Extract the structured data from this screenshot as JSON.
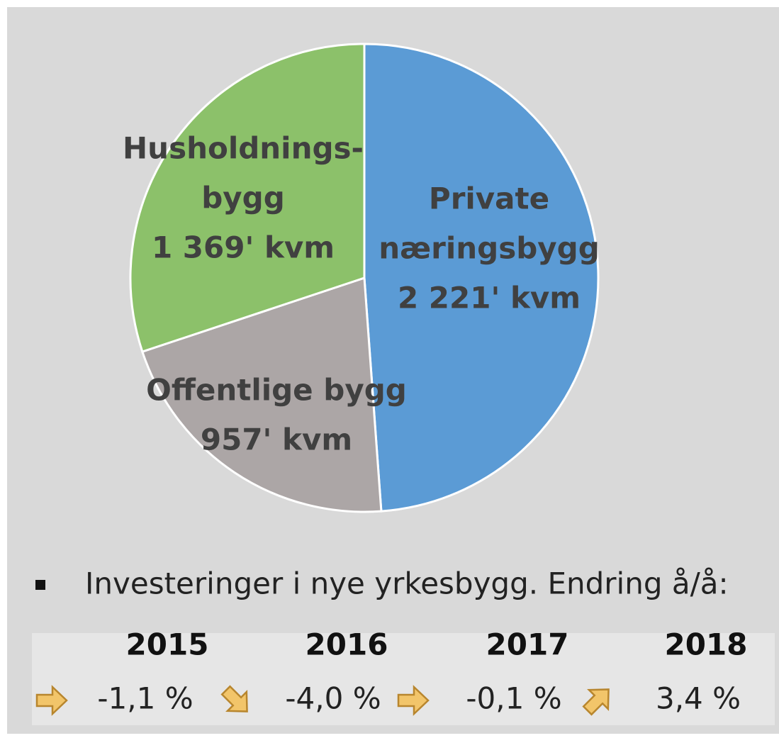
{
  "chart_data": {
    "type": "pie",
    "categories": [
      [
        "Private",
        "næringsbygg"
      ],
      [
        "Offentlige bygg"
      ],
      [
        "Husholdnings-",
        "bygg"
      ]
    ],
    "values": [
      2221,
      957,
      1369
    ],
    "value_labels": [
      "2 221' kvm",
      "957' kvm",
      "1 369' kvm"
    ],
    "colors": [
      "#5b9bd5",
      "#aca6a6",
      "#8cc16a"
    ]
  },
  "investments": {
    "text": "Investeringer i nye yrkesbygg. Endring å/å:",
    "years": [
      "2015",
      "2016",
      "2017",
      "2018"
    ],
    "values": [
      -1.1,
      -4.0,
      -0.1,
      3.4
    ],
    "value_labels": [
      "-1,1 %",
      "-4,0 %",
      "-0,1 %",
      "3,4 %"
    ],
    "arrows": [
      "right",
      "down-right",
      "right",
      "up-right"
    ]
  }
}
